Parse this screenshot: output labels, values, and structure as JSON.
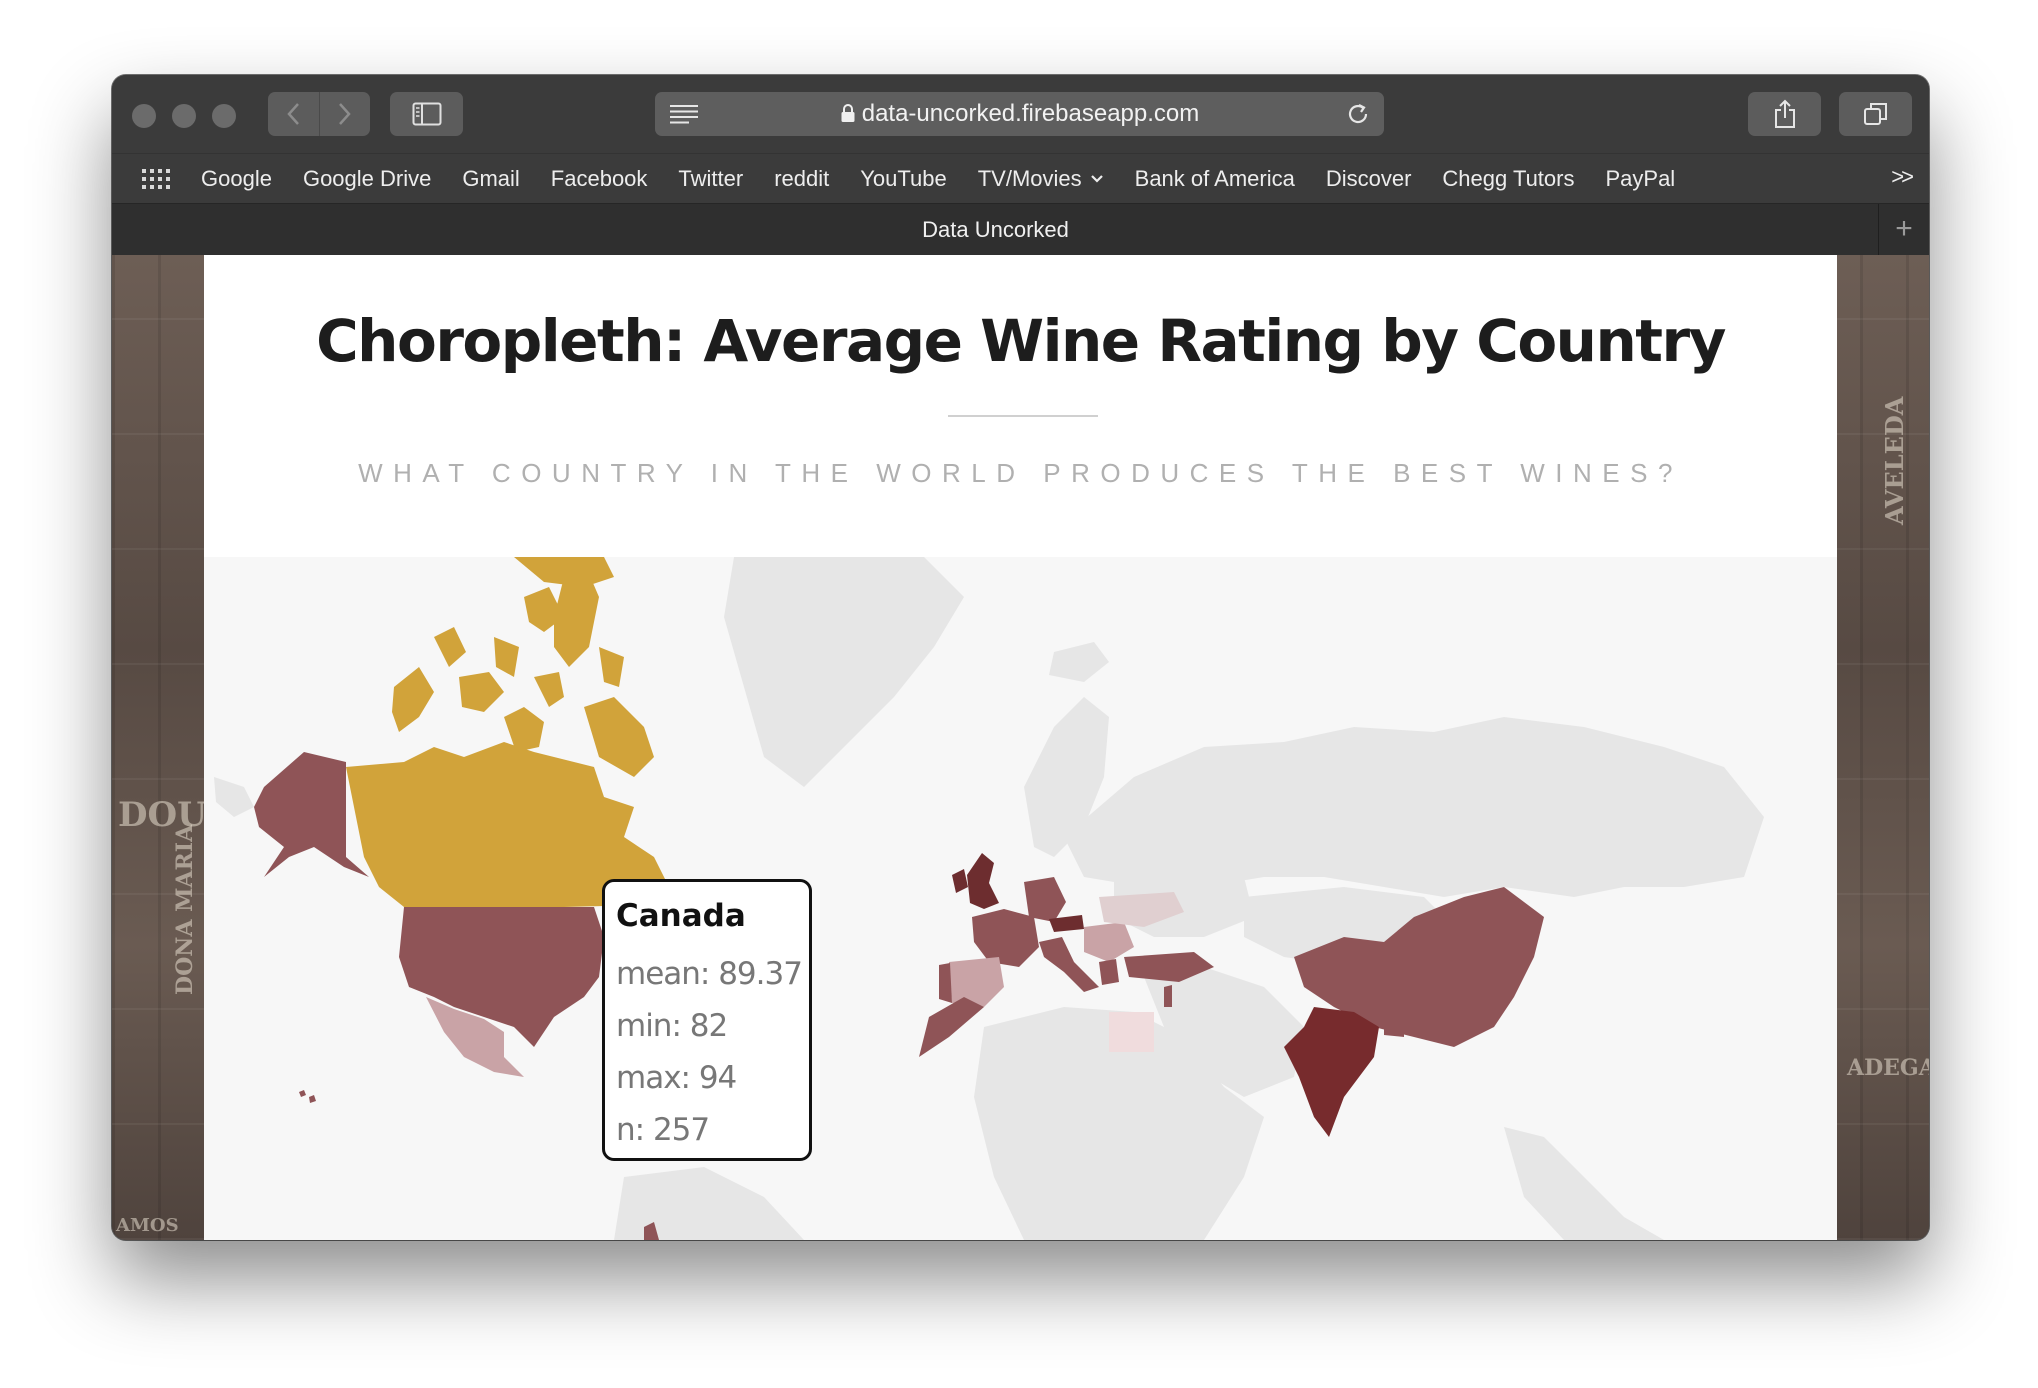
{
  "browser": {
    "url": "data-uncorked.firebaseapp.com",
    "tab_title": "Data Uncorked",
    "new_tab_label": "+",
    "bookmarks": [
      {
        "label": "Google"
      },
      {
        "label": "Google Drive"
      },
      {
        "label": "Gmail"
      },
      {
        "label": "Facebook"
      },
      {
        "label": "Twitter"
      },
      {
        "label": "reddit"
      },
      {
        "label": "YouTube"
      },
      {
        "label": "TV/Movies"
      },
      {
        "label": "Bank of America"
      },
      {
        "label": "Discover"
      },
      {
        "label": "Chegg Tutors"
      },
      {
        "label": "PayPal"
      }
    ],
    "bookmarks_more": ">>",
    "icons": [
      "apps-grid-icon",
      "back-icon",
      "forward-icon",
      "sidebar-icon",
      "reader-icon",
      "lock-icon",
      "reload-icon",
      "share-icon",
      "tabs-overview-icon",
      "chevron-down-icon"
    ]
  },
  "page": {
    "title": "Choropleth: Average Wine Rating by Country",
    "subtitle": "WHAT COUNTRY IN THE WORLD PRODUCES THE BEST WINES?",
    "cork_words": [
      "DOURO",
      "AVELEDA",
      "DONA MARIA",
      "ADEGA",
      "AMOS"
    ],
    "tooltip": {
      "country": "Canada",
      "mean": "mean: 89.37",
      "min": "min: 82",
      "max": "max: 94",
      "n": "n: 257"
    },
    "colors": {
      "highlight": "#d1a33a",
      "dark": "#6d2d2f",
      "medium": "#8f5457",
      "light": "#c9a3a6",
      "no_data": "#e4e4e4"
    }
  }
}
